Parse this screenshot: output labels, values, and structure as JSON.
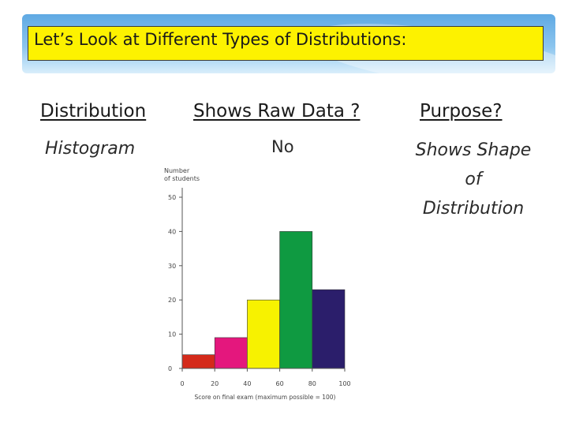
{
  "title": "Let’s Look at Different Types of Distributions:",
  "table": {
    "headers": [
      "Distribution",
      "Shows Raw Data ?",
      "Purpose?"
    ],
    "row": {
      "distribution": "Histogram",
      "raw_data": "No",
      "purpose_lines": [
        "Shows Shape",
        "of",
        "Distribution"
      ]
    }
  },
  "colors": {
    "title_bg": "#fdf200",
    "banner": "#6fb3e7",
    "bars": [
      "#d42a1a",
      "#e4177d",
      "#f7f200",
      "#0f9a41",
      "#2b1e6b"
    ]
  },
  "chart_data": {
    "type": "bar",
    "title": "",
    "ylabel": "Number of students",
    "xlabel": "Score on final exam (maximum possible = 100)",
    "x_ticks": [
      "0",
      "20",
      "40",
      "60",
      "80",
      "100"
    ],
    "y_ticks": [
      "0",
      "10",
      "20",
      "30",
      "40",
      "50"
    ],
    "ylim": [
      0,
      50
    ],
    "bins": [
      [
        0,
        20
      ],
      [
        20,
        40
      ],
      [
        40,
        60
      ],
      [
        60,
        80
      ],
      [
        80,
        100
      ]
    ],
    "values": [
      4,
      9,
      20,
      40,
      23
    ]
  }
}
